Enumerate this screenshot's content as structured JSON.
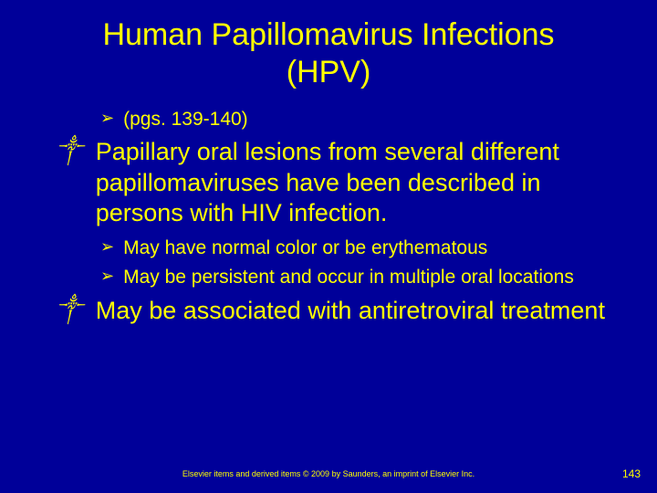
{
  "colors": {
    "background": "#000099",
    "title": "#ffff00",
    "main_text": "#ffff00",
    "sub_text": "#ffff00",
    "footer": "#ffff00",
    "page_num": "#ffff00"
  },
  "title": {
    "line1": "Human Papillomavirus Infections",
    "line2": "(HPV)",
    "fontsize": 34
  },
  "items": {
    "sub1": {
      "bullet": "➢",
      "text": "(pgs. 139-140)"
    },
    "main1": {
      "bullet": "༒",
      "text": "Papillary oral lesions from several different papillomaviruses have been described in persons with HIV infection."
    },
    "sub2": {
      "bullet": "➢",
      "text": "May have normal color or be erythematous"
    },
    "sub3": {
      "bullet": "➢",
      "text": "May be persistent and occur in multiple oral locations"
    },
    "main2": {
      "bullet": "༒",
      "text": "May be associated with antiretroviral treatment"
    }
  },
  "footer": "Elsevier items and derived items © 2009 by Saunders, an imprint of Elsevier Inc.",
  "page_number": "143",
  "typography": {
    "title_fontsize": 34,
    "main_fontsize": 27,
    "sub_fontsize": 21,
    "footer_fontsize": 9,
    "pagenum_fontsize": 12,
    "font_family": "Arial"
  }
}
